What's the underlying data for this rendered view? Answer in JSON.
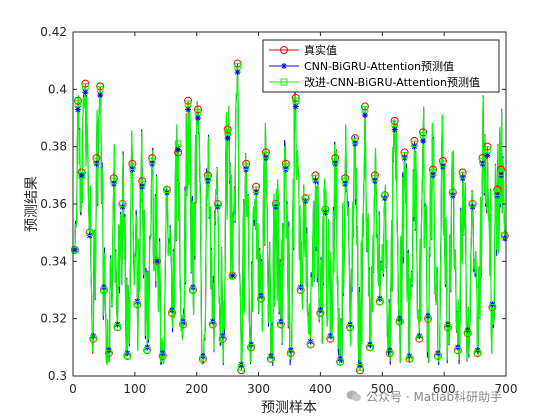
{
  "chart_data": {
    "type": "line",
    "title": "",
    "xlabel": "预测样本",
    "ylabel": "预测结果",
    "xlim": [
      0,
      700
    ],
    "ylim": [
      0.3,
      0.42
    ],
    "x_ticks": [
      "0",
      "100",
      "200",
      "300",
      "400",
      "500",
      "600",
      "700"
    ],
    "y_ticks": [
      "0.3",
      "0.32",
      "0.34",
      "0.36",
      "0.38",
      "0.4",
      "0.42"
    ],
    "grid": false,
    "legend_position": "top-right",
    "n_points": 700,
    "series": [
      {
        "name": "真实值",
        "color": "#ff0000",
        "marker": "circle"
      },
      {
        "name": "CNN-BiGRU-Attention预测值",
        "color": "#0000ff",
        "marker": "asterisk"
      },
      {
        "name": "改进-CNN-BiGRU-Attention预测值",
        "color": "#00ff00",
        "marker": "square"
      }
    ],
    "points": [
      [
        3,
        0.344,
        0.344,
        0.344
      ],
      [
        8,
        0.396,
        0.393,
        0.395
      ],
      [
        14,
        0.371,
        0.37,
        0.37
      ],
      [
        20,
        0.402,
        0.399,
        0.401
      ],
      [
        27,
        0.35,
        0.349,
        0.35
      ],
      [
        33,
        0.313,
        0.314,
        0.313
      ],
      [
        38,
        0.376,
        0.374,
        0.375
      ],
      [
        44,
        0.401,
        0.398,
        0.4
      ],
      [
        50,
        0.33,
        0.331,
        0.33
      ],
      [
        58,
        0.308,
        0.309,
        0.308
      ],
      [
        66,
        0.369,
        0.367,
        0.368
      ],
      [
        72,
        0.317,
        0.318,
        0.317
      ],
      [
        80,
        0.36,
        0.359,
        0.36
      ],
      [
        88,
        0.307,
        0.308,
        0.307
      ],
      [
        96,
        0.374,
        0.372,
        0.373
      ],
      [
        104,
        0.325,
        0.326,
        0.325
      ],
      [
        112,
        0.368,
        0.366,
        0.367
      ],
      [
        120,
        0.309,
        0.31,
        0.309
      ],
      [
        128,
        0.376,
        0.374,
        0.375
      ],
      [
        136,
        0.34,
        0.34,
        0.34
      ],
      [
        145,
        0.307,
        0.308,
        0.307
      ],
      [
        152,
        0.365,
        0.364,
        0.365
      ],
      [
        160,
        0.322,
        0.323,
        0.322
      ],
      [
        170,
        0.378,
        0.379,
        0.381
      ],
      [
        178,
        0.318,
        0.319,
        0.318
      ],
      [
        186,
        0.396,
        0.393,
        0.395
      ],
      [
        194,
        0.33,
        0.331,
        0.33
      ],
      [
        202,
        0.393,
        0.39,
        0.392
      ],
      [
        210,
        0.306,
        0.307,
        0.306
      ],
      [
        218,
        0.37,
        0.368,
        0.369
      ],
      [
        226,
        0.318,
        0.319,
        0.318
      ],
      [
        234,
        0.36,
        0.359,
        0.36
      ],
      [
        242,
        0.313,
        0.314,
        0.313
      ],
      [
        250,
        0.386,
        0.383,
        0.385
      ],
      [
        258,
        0.335,
        0.335,
        0.335
      ],
      [
        266,
        0.409,
        0.406,
        0.408
      ],
      [
        272,
        0.302,
        0.304,
        0.303
      ],
      [
        280,
        0.374,
        0.372,
        0.373
      ],
      [
        288,
        0.31,
        0.311,
        0.31
      ],
      [
        296,
        0.366,
        0.364,
        0.365
      ],
      [
        304,
        0.327,
        0.328,
        0.327
      ],
      [
        312,
        0.378,
        0.376,
        0.377
      ],
      [
        320,
        0.306,
        0.307,
        0.306
      ],
      [
        328,
        0.36,
        0.359,
        0.36
      ],
      [
        336,
        0.318,
        0.319,
        0.318
      ],
      [
        344,
        0.374,
        0.372,
        0.373
      ],
      [
        352,
        0.308,
        0.309,
        0.308
      ],
      [
        360,
        0.397,
        0.394,
        0.396
      ],
      [
        368,
        0.33,
        0.331,
        0.33
      ],
      [
        376,
        0.362,
        0.361,
        0.362
      ],
      [
        384,
        0.311,
        0.312,
        0.311
      ],
      [
        392,
        0.37,
        0.368,
        0.369
      ],
      [
        400,
        0.322,
        0.323,
        0.322
      ],
      [
        408,
        0.358,
        0.357,
        0.358
      ],
      [
        416,
        0.313,
        0.314,
        0.313
      ],
      [
        424,
        0.376,
        0.374,
        0.375
      ],
      [
        432,
        0.305,
        0.306,
        0.305
      ],
      [
        440,
        0.369,
        0.367,
        0.368
      ],
      [
        448,
        0.317,
        0.318,
        0.317
      ],
      [
        456,
        0.383,
        0.381,
        0.382
      ],
      [
        464,
        0.302,
        0.304,
        0.303
      ],
      [
        472,
        0.394,
        0.391,
        0.393
      ],
      [
        480,
        0.31,
        0.311,
        0.31
      ],
      [
        488,
        0.37,
        0.368,
        0.369
      ],
      [
        496,
        0.326,
        0.327,
        0.326
      ],
      [
        504,
        0.363,
        0.362,
        0.363
      ],
      [
        512,
        0.308,
        0.309,
        0.308
      ],
      [
        520,
        0.389,
        0.386,
        0.388
      ],
      [
        528,
        0.319,
        0.32,
        0.319
      ],
      [
        536,
        0.378,
        0.376,
        0.377
      ],
      [
        544,
        0.306,
        0.307,
        0.306
      ],
      [
        552,
        0.382,
        0.38,
        0.381
      ],
      [
        560,
        0.313,
        0.314,
        0.313
      ],
      [
        566,
        0.385,
        0.382,
        0.384
      ],
      [
        574,
        0.32,
        0.321,
        0.32
      ],
      [
        582,
        0.372,
        0.37,
        0.371
      ],
      [
        590,
        0.307,
        0.308,
        0.307
      ],
      [
        598,
        0.375,
        0.373,
        0.374
      ],
      [
        606,
        0.317,
        0.318,
        0.317
      ],
      [
        614,
        0.364,
        0.363,
        0.364
      ],
      [
        622,
        0.309,
        0.31,
        0.309
      ],
      [
        630,
        0.371,
        0.369,
        0.37
      ],
      [
        638,
        0.315,
        0.316,
        0.315
      ],
      [
        646,
        0.36,
        0.359,
        0.36
      ],
      [
        654,
        0.308,
        0.309,
        0.308
      ],
      [
        662,
        0.376,
        0.374,
        0.375
      ],
      [
        670,
        0.38,
        0.377,
        0.379
      ],
      [
        678,
        0.324,
        0.325,
        0.324
      ],
      [
        686,
        0.365,
        0.363,
        0.364
      ],
      [
        692,
        0.372,
        0.37,
        0.371
      ],
      [
        698,
        0.349,
        0.348,
        0.349
      ]
    ]
  },
  "watermark": {
    "text": "公众号 · Matlab科研助手"
  }
}
